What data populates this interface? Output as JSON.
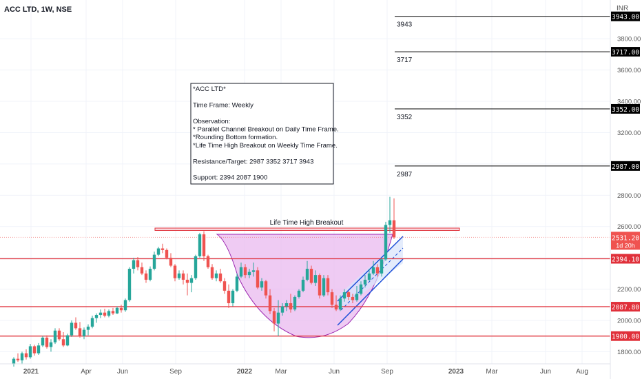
{
  "header": {
    "symbol_title": "ACC LTD, 1W, NSE",
    "currency": "INR"
  },
  "colors": {
    "up": "#26a69a",
    "down": "#ef5350",
    "level_line": "#e0303a",
    "target_line": "#000000",
    "bowl_fill": "#e9b9ef",
    "bowl_stroke": "#9c27b0",
    "channel_stroke": "#1e50d8",
    "channel_fill": "#d8e4fb",
    "breakout_box": "#f7c6cf",
    "current_price": "#ef5350"
  },
  "annotation": {
    "lines": [
      "*ACC LTD*",
      "",
      "Time Frame: Weekly",
      "",
      "Observation:",
      "* Parallel Channel Breakout on Daily Time Frame.",
      "*Rounding Bottom formation.",
      "*Life Time High Breakout on Weekly Time Frame.",
      "",
      "Resistance/Target: 2987 3352 3717 3943",
      "",
      "Support: 2394 2087 1900"
    ]
  },
  "breakout_label": "Life Time High Breakout",
  "chart_data": {
    "type": "candlestick",
    "title": "ACC LTD, 1W, NSE",
    "ylabel": "INR",
    "ylim": [
      1700,
      4000
    ],
    "x_ticks": [
      "2021",
      "Apr",
      "Jun",
      "Sep",
      "2022",
      "Mar",
      "Jun",
      "Sep",
      "2023",
      "Mar",
      "Jun",
      "Aug"
    ],
    "y_ticks": [
      1800,
      2000,
      2200,
      2600,
      2800,
      3200,
      3400,
      3600,
      3800
    ],
    "support_levels": [
      {
        "value": 2394.1,
        "label": "2394.10"
      },
      {
        "value": 2087.8,
        "label": "2087.80"
      },
      {
        "value": 1900.0,
        "label": "1900.00"
      }
    ],
    "target_levels": [
      {
        "value": 2987,
        "label": "2987",
        "axis_label": "2987.00"
      },
      {
        "value": 3352,
        "label": "3352",
        "axis_label": "3352.00"
      },
      {
        "value": 3717,
        "label": "3717",
        "axis_label": "3717.00"
      },
      {
        "value": 3943,
        "label": "3943",
        "axis_label": "3943.00"
      }
    ],
    "current_price": {
      "value": 2531.2,
      "label": "2531.20",
      "countdown": "1d 20h"
    },
    "lifetime_high_zone": [
      2575,
      2590
    ],
    "candles": [
      {
        "o": 1720,
        "h": 1765,
        "l": 1705,
        "c": 1755
      },
      {
        "o": 1755,
        "h": 1790,
        "l": 1735,
        "c": 1745
      },
      {
        "o": 1745,
        "h": 1800,
        "l": 1720,
        "c": 1790
      },
      {
        "o": 1790,
        "h": 1815,
        "l": 1750,
        "c": 1765
      },
      {
        "o": 1765,
        "h": 1850,
        "l": 1755,
        "c": 1835
      },
      {
        "o": 1835,
        "h": 1845,
        "l": 1775,
        "c": 1790
      },
      {
        "o": 1790,
        "h": 1855,
        "l": 1780,
        "c": 1840
      },
      {
        "o": 1840,
        "h": 1900,
        "l": 1830,
        "c": 1890
      },
      {
        "o": 1890,
        "h": 1905,
        "l": 1820,
        "c": 1830
      },
      {
        "o": 1830,
        "h": 1880,
        "l": 1800,
        "c": 1860
      },
      {
        "o": 1860,
        "h": 1950,
        "l": 1850,
        "c": 1935
      },
      {
        "o": 1935,
        "h": 1950,
        "l": 1870,
        "c": 1880
      },
      {
        "o": 1880,
        "h": 1925,
        "l": 1830,
        "c": 1840
      },
      {
        "o": 1840,
        "h": 1915,
        "l": 1835,
        "c": 1905
      },
      {
        "o": 1905,
        "h": 2000,
        "l": 1895,
        "c": 1985
      },
      {
        "o": 1985,
        "h": 2020,
        "l": 1940,
        "c": 1950
      },
      {
        "o": 1950,
        "h": 1990,
        "l": 1890,
        "c": 1900
      },
      {
        "o": 1900,
        "h": 1955,
        "l": 1880,
        "c": 1940
      },
      {
        "o": 1940,
        "h": 1975,
        "l": 1905,
        "c": 1960
      },
      {
        "o": 1960,
        "h": 2030,
        "l": 1950,
        "c": 2015
      },
      {
        "o": 2015,
        "h": 2045,
        "l": 1985,
        "c": 2035
      },
      {
        "o": 2035,
        "h": 2070,
        "l": 2015,
        "c": 2050
      },
      {
        "o": 2050,
        "h": 2075,
        "l": 2020,
        "c": 2030
      },
      {
        "o": 2030,
        "h": 2070,
        "l": 2020,
        "c": 2060
      },
      {
        "o": 2060,
        "h": 2080,
        "l": 2035,
        "c": 2045
      },
      {
        "o": 2045,
        "h": 2090,
        "l": 2040,
        "c": 2080
      },
      {
        "o": 2080,
        "h": 2100,
        "l": 2050,
        "c": 2065
      },
      {
        "o": 2065,
        "h": 2140,
        "l": 2055,
        "c": 2130
      },
      {
        "o": 2130,
        "h": 2340,
        "l": 2120,
        "c": 2330
      },
      {
        "o": 2330,
        "h": 2400,
        "l": 2300,
        "c": 2385
      },
      {
        "o": 2385,
        "h": 2405,
        "l": 2320,
        "c": 2340
      },
      {
        "o": 2340,
        "h": 2370,
        "l": 2290,
        "c": 2300
      },
      {
        "o": 2300,
        "h": 2320,
        "l": 2240,
        "c": 2260
      },
      {
        "o": 2260,
        "h": 2345,
        "l": 2250,
        "c": 2330
      },
      {
        "o": 2330,
        "h": 2440,
        "l": 2320,
        "c": 2420
      },
      {
        "o": 2420,
        "h": 2470,
        "l": 2410,
        "c": 2460
      },
      {
        "o": 2460,
        "h": 2490,
        "l": 2430,
        "c": 2450
      },
      {
        "o": 2450,
        "h": 2460,
        "l": 2390,
        "c": 2400
      },
      {
        "o": 2400,
        "h": 2430,
        "l": 2340,
        "c": 2350
      },
      {
        "o": 2350,
        "h": 2360,
        "l": 2250,
        "c": 2270
      },
      {
        "o": 2270,
        "h": 2320,
        "l": 2260,
        "c": 2300
      },
      {
        "o": 2300,
        "h": 2320,
        "l": 2230,
        "c": 2260
      },
      {
        "o": 2260,
        "h": 2300,
        "l": 2160,
        "c": 2240
      },
      {
        "o": 2240,
        "h": 2290,
        "l": 2180,
        "c": 2270
      },
      {
        "o": 2270,
        "h": 2420,
        "l": 2260,
        "c": 2410
      },
      {
        "o": 2410,
        "h": 2560,
        "l": 2400,
        "c": 2550
      },
      {
        "o": 2550,
        "h": 2570,
        "l": 2380,
        "c": 2410
      },
      {
        "o": 2410,
        "h": 2420,
        "l": 2330,
        "c": 2340
      },
      {
        "o": 2340,
        "h": 2360,
        "l": 2260,
        "c": 2270
      },
      {
        "o": 2270,
        "h": 2320,
        "l": 2250,
        "c": 2300
      },
      {
        "o": 2300,
        "h": 2330,
        "l": 2240,
        "c": 2250
      },
      {
        "o": 2250,
        "h": 2270,
        "l": 2170,
        "c": 2190
      },
      {
        "o": 2190,
        "h": 2230,
        "l": 2080,
        "c": 2110
      },
      {
        "o": 2110,
        "h": 2200,
        "l": 2090,
        "c": 2190
      },
      {
        "o": 2190,
        "h": 2300,
        "l": 2180,
        "c": 2280
      },
      {
        "o": 2280,
        "h": 2370,
        "l": 2270,
        "c": 2340
      },
      {
        "o": 2340,
        "h": 2360,
        "l": 2270,
        "c": 2290
      },
      {
        "o": 2290,
        "h": 2330,
        "l": 2270,
        "c": 2310
      },
      {
        "o": 2310,
        "h": 2370,
        "l": 2280,
        "c": 2320
      },
      {
        "o": 2320,
        "h": 2340,
        "l": 2200,
        "c": 2210
      },
      {
        "o": 2210,
        "h": 2270,
        "l": 2190,
        "c": 2250
      },
      {
        "o": 2250,
        "h": 2260,
        "l": 2140,
        "c": 2160
      },
      {
        "o": 2160,
        "h": 2200,
        "l": 2040,
        "c": 2060
      },
      {
        "o": 2060,
        "h": 2080,
        "l": 1930,
        "c": 1980
      },
      {
        "o": 1980,
        "h": 2130,
        "l": 1900,
        "c": 2050
      },
      {
        "o": 2050,
        "h": 2110,
        "l": 2030,
        "c": 2090
      },
      {
        "o": 2090,
        "h": 2130,
        "l": 2060,
        "c": 2110
      },
      {
        "o": 2110,
        "h": 2170,
        "l": 2050,
        "c": 2070
      },
      {
        "o": 2070,
        "h": 2160,
        "l": 2060,
        "c": 2150
      },
      {
        "o": 2150,
        "h": 2200,
        "l": 2140,
        "c": 2190
      },
      {
        "o": 2190,
        "h": 2280,
        "l": 2180,
        "c": 2260
      },
      {
        "o": 2260,
        "h": 2380,
        "l": 2250,
        "c": 2330
      },
      {
        "o": 2330,
        "h": 2350,
        "l": 2230,
        "c": 2240
      },
      {
        "o": 2240,
        "h": 2320,
        "l": 2220,
        "c": 2290
      },
      {
        "o": 2290,
        "h": 2300,
        "l": 2140,
        "c": 2160
      },
      {
        "o": 2160,
        "h": 2290,
        "l": 2150,
        "c": 2270
      },
      {
        "o": 2270,
        "h": 2290,
        "l": 2160,
        "c": 2180
      },
      {
        "o": 2180,
        "h": 2200,
        "l": 2080,
        "c": 2100
      },
      {
        "o": 2100,
        "h": 2160,
        "l": 2060,
        "c": 2070
      },
      {
        "o": 2070,
        "h": 2160,
        "l": 2060,
        "c": 2140
      },
      {
        "o": 2140,
        "h": 2200,
        "l": 2120,
        "c": 2180
      },
      {
        "o": 2180,
        "h": 2190,
        "l": 2130,
        "c": 2150
      },
      {
        "o": 2150,
        "h": 2170,
        "l": 2110,
        "c": 2130
      },
      {
        "o": 2130,
        "h": 2220,
        "l": 2120,
        "c": 2170
      },
      {
        "o": 2170,
        "h": 2250,
        "l": 2160,
        "c": 2230
      },
      {
        "o": 2230,
        "h": 2290,
        "l": 2210,
        "c": 2260
      },
      {
        "o": 2260,
        "h": 2330,
        "l": 2250,
        "c": 2300
      },
      {
        "o": 2300,
        "h": 2380,
        "l": 2290,
        "c": 2340
      },
      {
        "o": 2340,
        "h": 2360,
        "l": 2280,
        "c": 2300
      },
      {
        "o": 2300,
        "h": 2400,
        "l": 2280,
        "c": 2390
      },
      {
        "o": 2390,
        "h": 2630,
        "l": 2380,
        "c": 2610
      },
      {
        "o": 2610,
        "h": 2790,
        "l": 2560,
        "c": 2640
      },
      {
        "o": 2640,
        "h": 2780,
        "l": 2520,
        "c": 2531.2
      }
    ]
  }
}
